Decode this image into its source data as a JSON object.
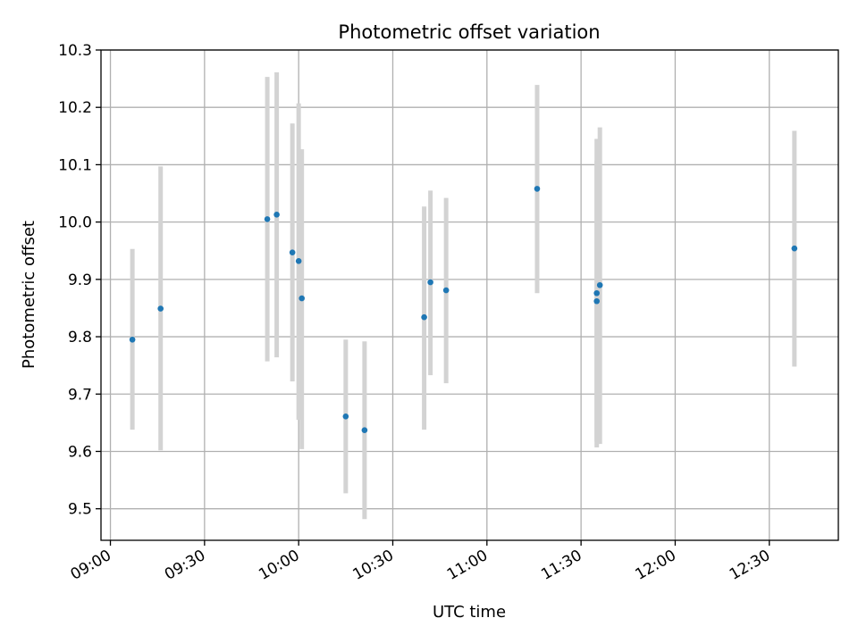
{
  "chart_data": {
    "type": "scatter",
    "title": "Photometric offset variation",
    "xlabel": "UTC time",
    "ylabel": "Photometric offset",
    "grid": true,
    "x_axis": {
      "kind": "time",
      "range": [
        "08:57",
        "12:52"
      ],
      "ticks": [
        "09:00",
        "09:30",
        "10:00",
        "10:30",
        "11:00",
        "11:30",
        "12:00",
        "12:30"
      ]
    },
    "y_axis": {
      "range": [
        9.445,
        10.3
      ],
      "ticks": [
        9.5,
        9.6,
        9.7,
        9.8,
        9.9,
        10.0,
        10.1,
        10.2,
        10.3
      ],
      "tick_labels": [
        "9.5",
        "9.6",
        "9.7",
        "9.8",
        "9.9",
        "10.0",
        "10.1",
        "10.2",
        "10.3"
      ]
    },
    "colors": {
      "points": "#1f77b4",
      "error_bars": "#d3d3d3"
    },
    "points": [
      {
        "x": "09:07",
        "y": 9.795,
        "y_low": 9.638,
        "y_high": 9.953
      },
      {
        "x": "09:16",
        "y": 9.849,
        "y_low": 9.602,
        "y_high": 10.097
      },
      {
        "x": "09:50",
        "y": 10.005,
        "y_low": 9.757,
        "y_high": 10.253
      },
      {
        "x": "09:53",
        "y": 10.013,
        "y_low": 9.764,
        "y_high": 10.261
      },
      {
        "x": "09:58",
        "y": 9.947,
        "y_low": 9.722,
        "y_high": 10.172
      },
      {
        "x": "10:00",
        "y": 9.932,
        "y_low": 9.655,
        "y_high": 10.207
      },
      {
        "x": "10:01",
        "y": 9.867,
        "y_low": 9.604,
        "y_high": 10.127
      },
      {
        "x": "10:15",
        "y": 9.661,
        "y_low": 9.527,
        "y_high": 9.795
      },
      {
        "x": "10:21",
        "y": 9.637,
        "y_low": 9.482,
        "y_high": 9.792
      },
      {
        "x": "10:40",
        "y": 9.834,
        "y_low": 9.638,
        "y_high": 10.027
      },
      {
        "x": "10:42",
        "y": 9.895,
        "y_low": 9.733,
        "y_high": 10.055
      },
      {
        "x": "10:47",
        "y": 9.881,
        "y_low": 9.719,
        "y_high": 10.042
      },
      {
        "x": "11:16",
        "y": 10.058,
        "y_low": 9.876,
        "y_high": 10.239
      },
      {
        "x": "11:35",
        "y": 9.862,
        "y_low": 9.617,
        "y_high": 10.107
      },
      {
        "x": "11:35",
        "y": 9.876,
        "y_low": 9.607,
        "y_high": 10.145
      },
      {
        "x": "11:36",
        "y": 9.89,
        "y_low": 9.613,
        "y_high": 10.165
      },
      {
        "x": "12:38",
        "y": 9.954,
        "y_low": 9.748,
        "y_high": 10.159
      }
    ]
  }
}
